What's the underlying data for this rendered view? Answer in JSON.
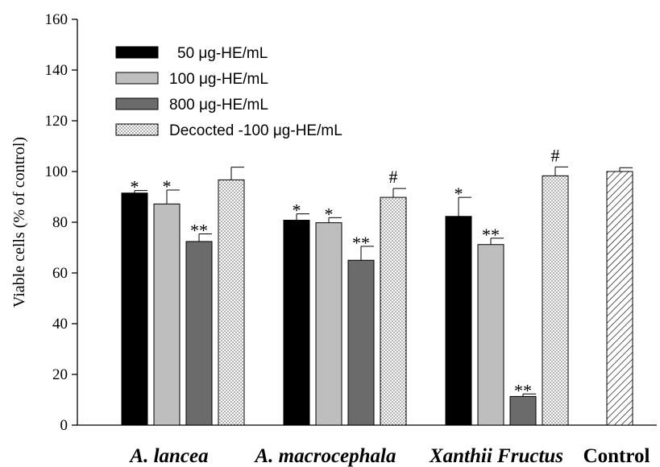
{
  "chart_data": {
    "type": "bar",
    "title": "",
    "xlabel": "",
    "ylabel": "Viable cells (% of control)",
    "ylim": [
      0,
      160
    ],
    "yticks": [
      0,
      20,
      40,
      60,
      80,
      100,
      120,
      140,
      160
    ],
    "categories": [
      "A. lancea",
      "A. macrocephala",
      "Xanthii Fructus",
      "Control"
    ],
    "categories_italic": [
      true,
      true,
      true,
      false
    ],
    "legend_position": "top-left",
    "series": [
      {
        "name": "50 μg-HE/mL",
        "key": "s50",
        "fill": "#000000",
        "pattern": "solid",
        "values": [
          91.5,
          80.8,
          82.3,
          null
        ],
        "errors": [
          1.0,
          2.5,
          7.5,
          null
        ],
        "annotations": [
          "*",
          "*",
          "*",
          ""
        ]
      },
      {
        "name": "100 μg-HE/mL",
        "key": "s100",
        "fill": "#bebebe",
        "pattern": "solid",
        "values": [
          87.2,
          79.8,
          71.2,
          null
        ],
        "errors": [
          5.5,
          2.0,
          2.5,
          null
        ],
        "annotations": [
          "*",
          "*",
          "**",
          ""
        ]
      },
      {
        "name": "800 μg-HE/mL",
        "key": "s800",
        "fill": "#6b6b6b",
        "pattern": "solid",
        "values": [
          72.4,
          65.0,
          11.3,
          null
        ],
        "errors": [
          3.0,
          5.5,
          1.0,
          null
        ],
        "annotations": [
          "**",
          "**",
          "**",
          ""
        ]
      },
      {
        "name": "Decocted -100 μg-HE/mL",
        "key": "sdec",
        "fill": "#e8e8e8",
        "pattern": "dots",
        "values": [
          96.7,
          89.8,
          98.3,
          null
        ],
        "errors": [
          5.0,
          3.5,
          3.5,
          null
        ],
        "annotations": [
          "",
          "#",
          "#",
          ""
        ]
      },
      {
        "name": "",
        "key": "sctrl",
        "fill": "#ffffff",
        "pattern": "hatch",
        "legend": false,
        "values": [
          null,
          null,
          null,
          100.0
        ],
        "errors": [
          null,
          null,
          null,
          1.5
        ],
        "annotations": [
          "",
          "",
          "",
          ""
        ]
      }
    ]
  }
}
